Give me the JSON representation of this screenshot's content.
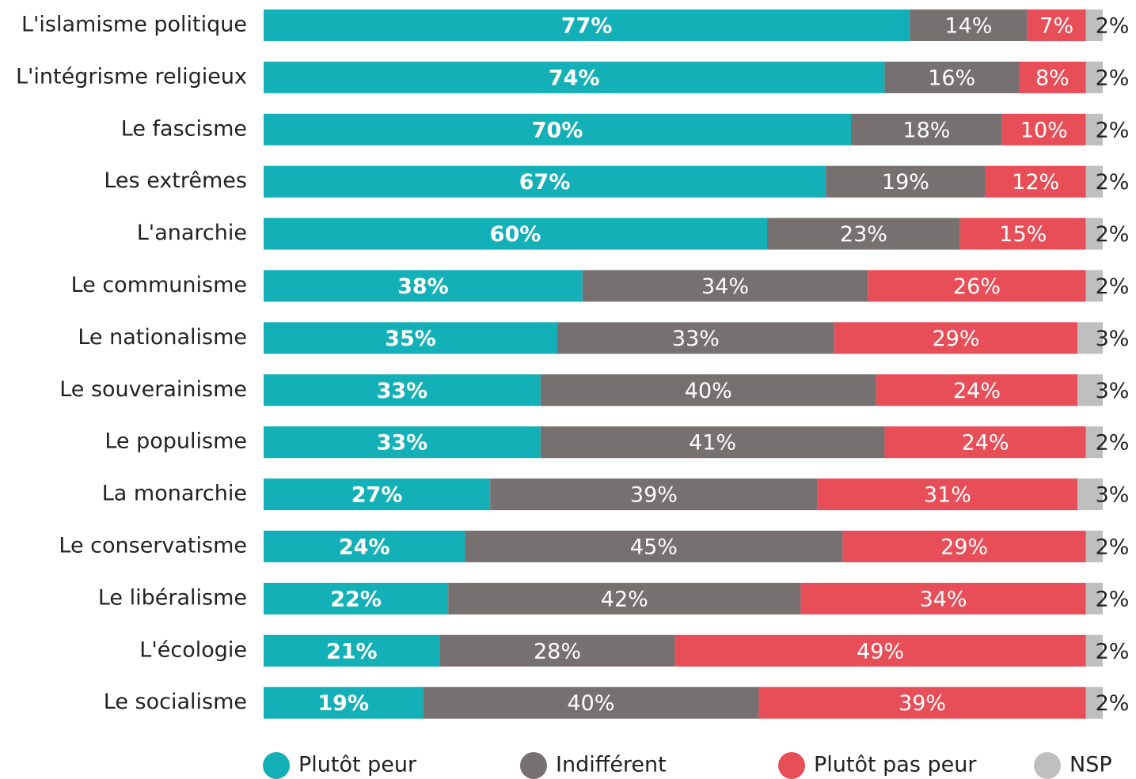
{
  "chart_data": {
    "type": "stacked_barh",
    "categories": [
      "L'islamisme politique",
      "L'intégrisme religieux",
      "Le fascisme",
      "Les extrêmes",
      "L'anarchie",
      "Le communisme",
      "Le nationalisme",
      "Le souverainisme",
      "Le populisme",
      "La monarchie",
      "Le conservatisme",
      "Le libéralisme",
      "L'écologie",
      "Le socialisme"
    ],
    "series": [
      {
        "name": "Plutôt peur",
        "color": "#14b0b8",
        "values": [
          77,
          74,
          70,
          67,
          60,
          38,
          35,
          33,
          33,
          27,
          24,
          22,
          21,
          19
        ],
        "value_labels": [
          "77%",
          "74%",
          "70%",
          "67%",
          "60%",
          "38%",
          "35%",
          "33%",
          "33%",
          "27%",
          "24%",
          "22%",
          "21%",
          "19%"
        ]
      },
      {
        "name": "Indifférent",
        "color": "#767170",
        "values": [
          14,
          16,
          18,
          19,
          23,
          34,
          33,
          40,
          41,
          39,
          45,
          42,
          28,
          40
        ],
        "value_labels": [
          "14%",
          "16%",
          "18%",
          "19%",
          "23%",
          "34%",
          "33%",
          "40%",
          "41%",
          "39%",
          "45%",
          "42%",
          "28%",
          "40%"
        ]
      },
      {
        "name": "Plutôt pas peur",
        "color": "#e84e57",
        "values": [
          7,
          8,
          10,
          12,
          15,
          26,
          29,
          24,
          24,
          31,
          29,
          34,
          49,
          39
        ],
        "value_labels": [
          "7%",
          "8%",
          "10%",
          "12%",
          "15%",
          "26%",
          "29%",
          "24%",
          "24%",
          "31%",
          "29%",
          "34%",
          "49%",
          "39%"
        ]
      },
      {
        "name": "NSP",
        "color": "#bfbfbf",
        "values": [
          2,
          2,
          2,
          2,
          2,
          2,
          3,
          3,
          2,
          3,
          2,
          2,
          2,
          2
        ],
        "value_labels": [
          "2%",
          "2%",
          "2%",
          "2%",
          "2%",
          "2%",
          "3%",
          "3%",
          "2%",
          "3%",
          "2%",
          "2%",
          "2%",
          "2%"
        ]
      }
    ]
  }
}
